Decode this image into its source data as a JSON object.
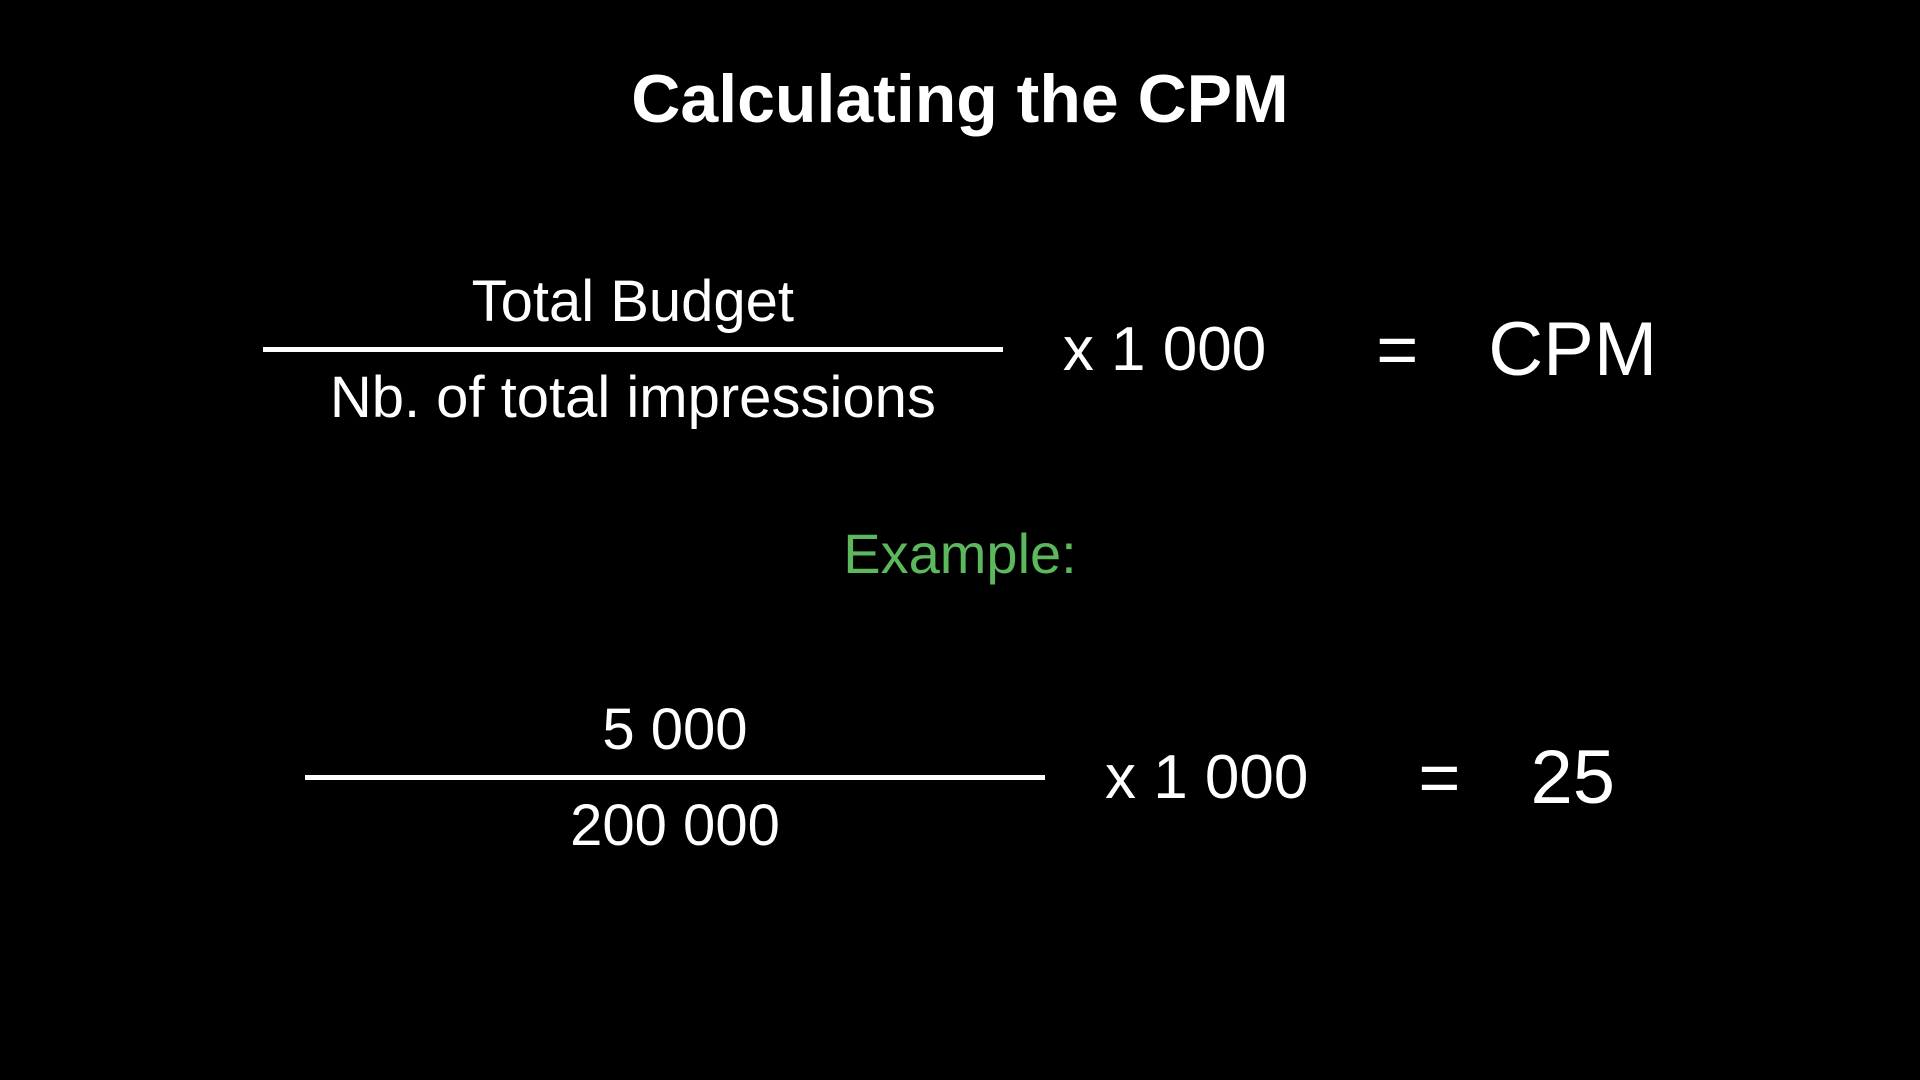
{
  "slide": {
    "title": "Calculating the CPM",
    "background_color": "#000000",
    "text_color": "#ffffff",
    "accent_color": "#5cb85c"
  },
  "formula": {
    "numerator": "Total Budget",
    "denominator": "Nb. of total impressions",
    "multiplier": "x 1 000",
    "equals": "=",
    "result": "CPM",
    "divider_width": 740,
    "divider_height": 5,
    "divider_color": "#ffffff"
  },
  "example": {
    "label": "Example:",
    "numerator": "5 000",
    "denominator": "200 000",
    "multiplier": "x 1 000",
    "equals": "=",
    "result": "25",
    "divider_width": 740,
    "divider_height": 5,
    "divider_color": "#ffffff"
  }
}
